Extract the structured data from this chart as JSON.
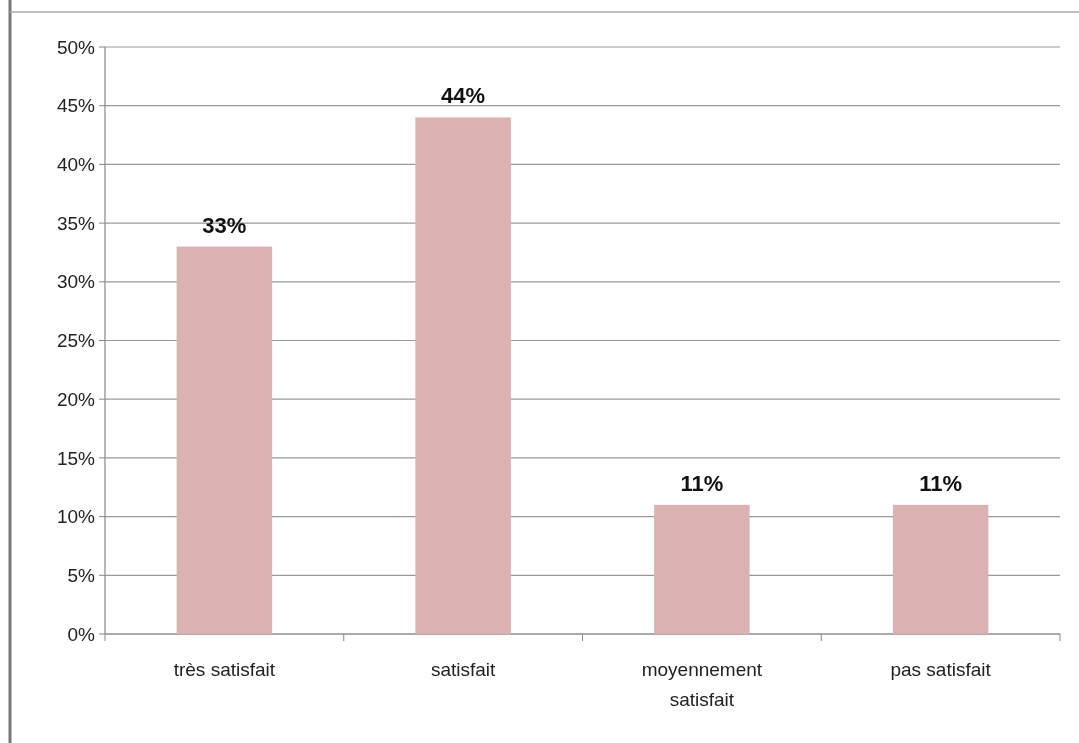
{
  "chart_data": {
    "type": "bar",
    "categories": [
      "très satisfait",
      "satisfait",
      "moyennement satisfait",
      "pas satisfait"
    ],
    "values": [
      33,
      44,
      11,
      11
    ],
    "value_labels": [
      "33%",
      "44%",
      "11%",
      "11%"
    ],
    "color": "#dbb2b2",
    "ylim": [
      0,
      50
    ],
    "yticks": [
      {
        "value": 0,
        "label": "0%"
      },
      {
        "value": 5,
        "label": "5%"
      },
      {
        "value": 10,
        "label": "10%"
      },
      {
        "value": 15,
        "label": "15%"
      },
      {
        "value": 20,
        "label": "20%"
      },
      {
        "value": 25,
        "label": "25%"
      },
      {
        "value": 30,
        "label": "30%"
      },
      {
        "value": 35,
        "label": "35%"
      },
      {
        "value": 40,
        "label": "40%"
      },
      {
        "value": 45,
        "label": "45%"
      },
      {
        "value": 50,
        "label": "50%"
      }
    ],
    "grid": "y"
  }
}
